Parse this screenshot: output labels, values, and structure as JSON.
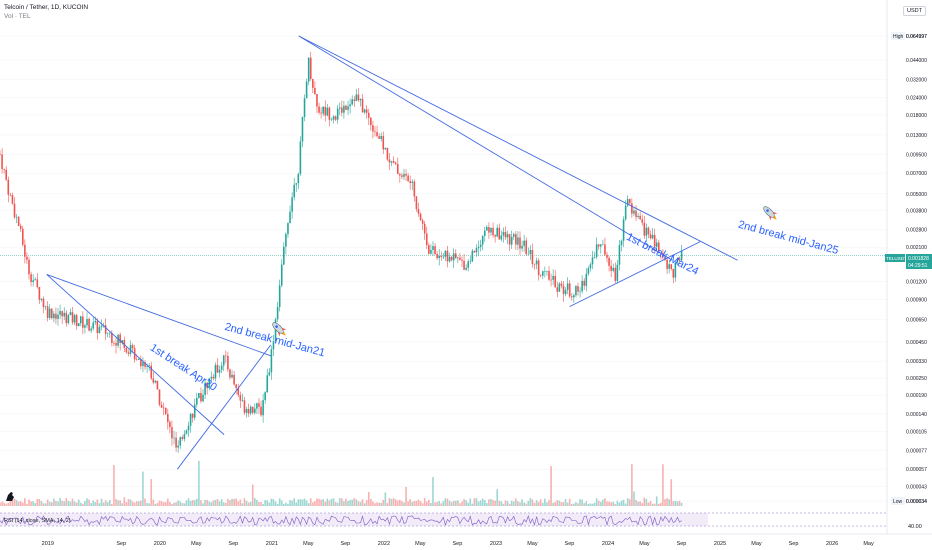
{
  "header": {
    "symbol_line": "Telcoin / Tether, 1D, KUCOIN",
    "volume_line": "Vol · TEL",
    "currency_button": "USDT"
  },
  "price_labels": {
    "high_tag": "High",
    "high_value": "0.064997",
    "low_tag": "Low",
    "low_value": "0.000034",
    "current_symbol": "TELUSDT",
    "current_value": "0.001828",
    "countdown": "04:29:51"
  },
  "rsi_panel": {
    "label": "RSI (14, close, SMA, 14, 2)",
    "value": "40.00"
  },
  "colors": {
    "up": "#26a69a",
    "down": "#ef5350",
    "trendline": "#4169e1",
    "annotation": "#2962ff",
    "rsi_line": "#7e57c2",
    "current_price": "#26a69a"
  },
  "chart_data": {
    "type": "candlestick",
    "y_scale": "log",
    "y_ticks": [
      "0.064997",
      "0.044000",
      "0.032000",
      "0.024000",
      "0.018000",
      "0.013000",
      "0.009500",
      "0.007000",
      "0.005000",
      "0.003800",
      "0.002800",
      "0.002100",
      "0.001828",
      "0.001200",
      "0.000900",
      "0.000650",
      "0.000450",
      "0.000330",
      "0.000250",
      "0.000190",
      "0.000140",
      "0.000105",
      "0.000077",
      "0.000057",
      "0.000043",
      "0.000034"
    ],
    "x_ticks": [
      "2019",
      "Sep",
      "2020",
      "May",
      "Sep",
      "2021",
      "May",
      "Sep",
      "2022",
      "May",
      "Sep",
      "2023",
      "May",
      "Sep",
      "2024",
      "May",
      "Sep",
      "2025",
      "May",
      "Sep",
      "2026",
      "May"
    ],
    "price_path": [
      [
        "2018-08",
        0.0095
      ],
      [
        "2018-09",
        0.005
      ],
      [
        "2018-10",
        0.003
      ],
      [
        "2018-11",
        0.0015
      ],
      [
        "2019-01",
        0.00075
      ],
      [
        "2019-04",
        0.00065
      ],
      [
        "2019-07",
        0.00055
      ],
      [
        "2019-09",
        0.00045
      ],
      [
        "2019-12",
        0.0003
      ],
      [
        "2020-03",
        7.5e-05
      ],
      [
        "2020-04",
        0.00012
      ],
      [
        "2020-06",
        0.00022
      ],
      [
        "2020-08",
        0.00035
      ],
      [
        "2020-10",
        0.00016
      ],
      [
        "2020-12",
        0.00015
      ],
      [
        "2021-01",
        0.00035
      ],
      [
        "2021-02",
        0.0012
      ],
      [
        "2021-03",
        0.004
      ],
      [
        "2021-04",
        0.008
      ],
      [
        "2021-05",
        0.045
      ],
      [
        "2021-06",
        0.02
      ],
      [
        "2021-08",
        0.018
      ],
      [
        "2021-10",
        0.025
      ],
      [
        "2021-12",
        0.015
      ],
      [
        "2022-02",
        0.008
      ],
      [
        "2022-04",
        0.006
      ],
      [
        "2022-06",
        0.002
      ],
      [
        "2022-08",
        0.0018
      ],
      [
        "2022-10",
        0.0016
      ],
      [
        "2022-12",
        0.0028
      ],
      [
        "2023-02",
        0.0025
      ],
      [
        "2023-04",
        0.0022
      ],
      [
        "2023-06",
        0.0014
      ],
      [
        "2023-08",
        0.0011
      ],
      [
        "2023-10",
        0.001
      ],
      [
        "2023-12",
        0.0022
      ],
      [
        "2024-01",
        0.0019
      ],
      [
        "2024-02",
        0.0013
      ],
      [
        "2024-03",
        0.0045
      ],
      [
        "2024-04",
        0.0035
      ],
      [
        "2024-06",
        0.0023
      ],
      [
        "2024-08",
        0.0014
      ],
      [
        "2024-09",
        0.0018
      ]
    ],
    "trendlines": [
      {
        "from": [
          "2019-01",
          0.00135
        ],
        "to": [
          "2021-01",
          0.00036
        ]
      },
      {
        "from": [
          "2019-01",
          0.00135
        ],
        "to": [
          "2020-08",
          0.0001
        ]
      },
      {
        "from": [
          "2020-03",
          5.7e-05
        ],
        "to": [
          "2021-01",
          0.00043
        ]
      },
      {
        "from": [
          "2021-04",
          0.064997
        ],
        "to": [
          "2025-03",
          0.0017
        ]
      },
      {
        "from": [
          "2021-04",
          0.064997
        ],
        "to": [
          "2024-08",
          0.0017
        ]
      },
      {
        "from": [
          "2023-09",
          0.0008
        ],
        "to": [
          "2024-11",
          0.0023
        ]
      }
    ],
    "annotations": [
      {
        "text": "1st break Apr20",
        "at": [
          "2019-12",
          0.0004
        ],
        "angle": 33
      },
      {
        "text": "2nd break mid-Jan21",
        "at": [
          "2020-08",
          0.00055
        ],
        "angle": 15
      },
      {
        "text": "1st break Mar24",
        "at": [
          "2024-03",
          0.0024
        ],
        "angle": 27
      },
      {
        "text": "2nd break mid-Jan25",
        "at": [
          "2025-03",
          0.0029
        ],
        "angle": 15
      }
    ]
  }
}
